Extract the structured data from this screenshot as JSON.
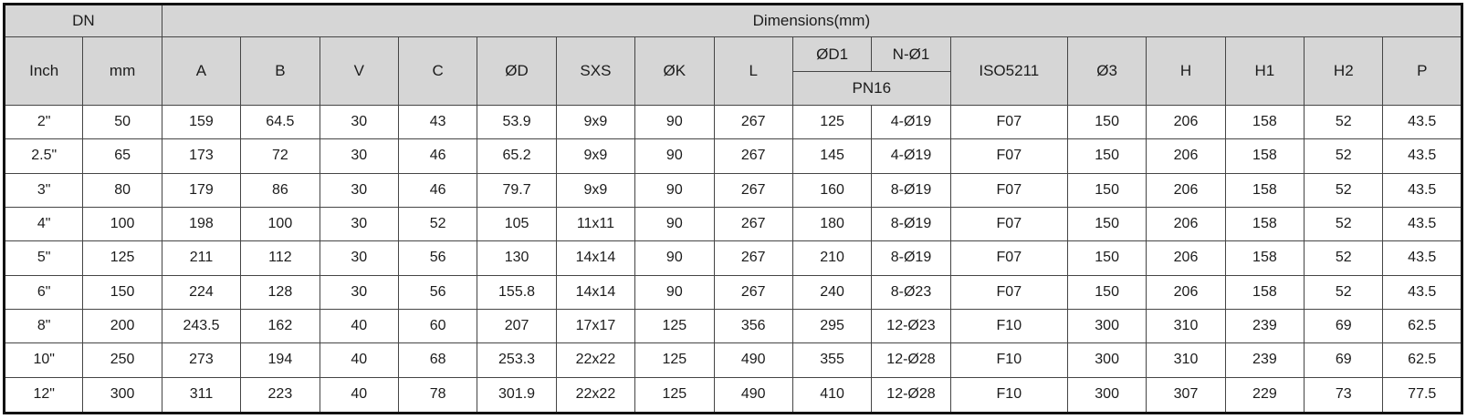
{
  "table": {
    "header": {
      "dn": "DN",
      "dimensions": "Dimensions(mm)",
      "pn": "PN16"
    },
    "columns": [
      "Inch",
      "mm",
      "A",
      "B",
      "V",
      "C",
      "ØD",
      "SXS",
      "ØK",
      "L",
      "ØD1",
      "N-Ø1",
      "ISO5211",
      "Ø3",
      "H",
      "H1",
      "H2",
      "P"
    ],
    "rows": [
      [
        "2\"",
        "50",
        "159",
        "64.5",
        "30",
        "43",
        "53.9",
        "9x9",
        "90",
        "267",
        "125",
        "4-Ø19",
        "F07",
        "150",
        "206",
        "158",
        "52",
        "43.5"
      ],
      [
        "2.5\"",
        "65",
        "173",
        "72",
        "30",
        "46",
        "65.2",
        "9x9",
        "90",
        "267",
        "145",
        "4-Ø19",
        "F07",
        "150",
        "206",
        "158",
        "52",
        "43.5"
      ],
      [
        "3\"",
        "80",
        "179",
        "86",
        "30",
        "46",
        "79.7",
        "9x9",
        "90",
        "267",
        "160",
        "8-Ø19",
        "F07",
        "150",
        "206",
        "158",
        "52",
        "43.5"
      ],
      [
        "4\"",
        "100",
        "198",
        "100",
        "30",
        "52",
        "105",
        "11x11",
        "90",
        "267",
        "180",
        "8-Ø19",
        "F07",
        "150",
        "206",
        "158",
        "52",
        "43.5"
      ],
      [
        "5\"",
        "125",
        "211",
        "112",
        "30",
        "56",
        "130",
        "14x14",
        "90",
        "267",
        "210",
        "8-Ø19",
        "F07",
        "150",
        "206",
        "158",
        "52",
        "43.5"
      ],
      [
        "6\"",
        "150",
        "224",
        "128",
        "30",
        "56",
        "155.8",
        "14x14",
        "90",
        "267",
        "240",
        "8-Ø23",
        "F07",
        "150",
        "206",
        "158",
        "52",
        "43.5"
      ],
      [
        "8\"",
        "200",
        "243.5",
        "162",
        "40",
        "60",
        "207",
        "17x17",
        "125",
        "356",
        "295",
        "12-Ø23",
        "F10",
        "300",
        "310",
        "239",
        "69",
        "62.5"
      ],
      [
        "10\"",
        "250",
        "273",
        "194",
        "40",
        "68",
        "253.3",
        "22x22",
        "125",
        "490",
        "355",
        "12-Ø28",
        "F10",
        "300",
        "310",
        "239",
        "69",
        "62.5"
      ],
      [
        "12\"",
        "300",
        "311",
        "223",
        "40",
        "78",
        "301.9",
        "22x22",
        "125",
        "490",
        "410",
        "12-Ø28",
        "F10",
        "300",
        "307",
        "229",
        "73",
        "77.5"
      ]
    ],
    "colors": {
      "header_bg": "#d6d6d6",
      "border": "#454545",
      "outer_border": "#121212"
    }
  }
}
